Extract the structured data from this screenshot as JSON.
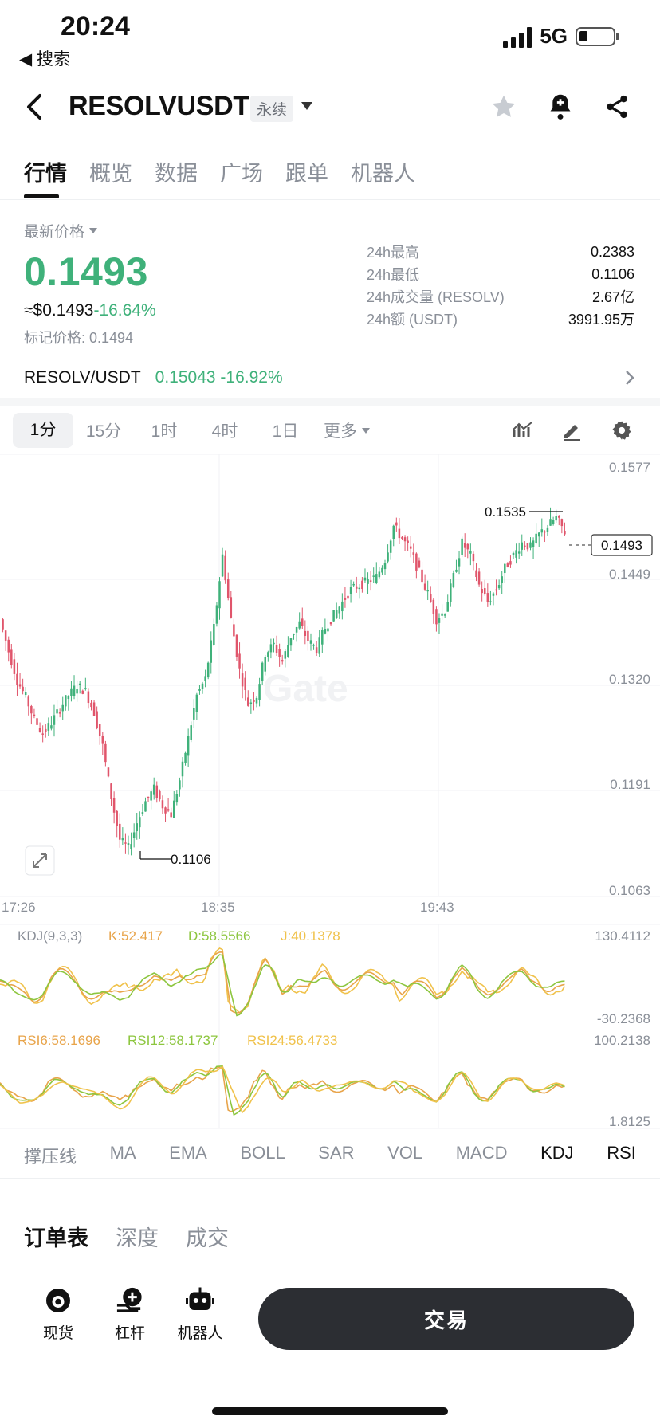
{
  "status": {
    "time": "20:24",
    "back_label": "◀ 搜索",
    "network": "5G"
  },
  "header": {
    "symbol": "RESOLVUSDT",
    "badge": "永续"
  },
  "tabs": [
    {
      "label": "行情",
      "active": true
    },
    {
      "label": "概览"
    },
    {
      "label": "数据"
    },
    {
      "label": "广场"
    },
    {
      "label": "跟单"
    },
    {
      "label": "机器人"
    }
  ],
  "price": {
    "label": "最新价格",
    "last": "0.1493",
    "usd": "≈$0.1493",
    "change": "-16.64%",
    "mark": "标记价格: 0.1494"
  },
  "stats": [
    {
      "k": "24h最高",
      "v": "0.2383"
    },
    {
      "k": "24h最低",
      "v": "0.1106"
    },
    {
      "k": "24h成交量 (RESOLV)",
      "v": "2.67亿"
    },
    {
      "k": "24h额 (USDT)",
      "v": "3991.95万"
    }
  ],
  "spot": {
    "pair": "RESOLV/USDT",
    "value": "0.15043 -16.92%"
  },
  "intervals": {
    "items": [
      "1分",
      "15分",
      "1时",
      "4时",
      "1日"
    ],
    "more": "更多"
  },
  "chart_data": {
    "type": "candlestick",
    "price_axis": [
      "0.1577",
      "0.1449",
      "0.1320",
      "0.1191",
      "0.1063"
    ],
    "ylim": [
      0.1063,
      0.1577
    ],
    "time_axis": [
      "17:26",
      "18:35",
      "19:43"
    ],
    "high_marker": "0.1535",
    "low_marker": "0.1106",
    "last_marker": "0.1493",
    "close_series_approx": [
      0.139,
      0.1352,
      0.1318,
      0.1298,
      0.1272,
      0.1255,
      0.1268,
      0.1285,
      0.13,
      0.1312,
      0.1305,
      0.128,
      0.124,
      0.118,
      0.113,
      0.112,
      0.115,
      0.1175,
      0.119,
      0.117,
      0.116,
      0.12,
      0.125,
      0.13,
      0.132,
      0.138,
      0.1465,
      0.139,
      0.133,
      0.129,
      0.13,
      0.135,
      0.136,
      0.134,
      0.137,
      0.1385,
      0.1365,
      0.1355,
      0.138,
      0.1395,
      0.141,
      0.1425,
      0.143,
      0.1435,
      0.144,
      0.146,
      0.15,
      0.1485,
      0.147,
      0.1445,
      0.142,
      0.139,
      0.14,
      0.144,
      0.148,
      0.1465,
      0.143,
      0.141,
      0.1425,
      0.145,
      0.1465,
      0.148,
      0.1475,
      0.149,
      0.15,
      0.151,
      0.1493
    ]
  },
  "kdj": {
    "label": "KDJ(9,3,3)",
    "k": "K:52.417",
    "d": "D:58.5566",
    "j": "J:40.1378",
    "top": "130.4112",
    "bottom": "-30.2368"
  },
  "rsi": {
    "r6": "RSI6:58.1696",
    "r12": "RSI12:58.1737",
    "r24": "RSI24:56.4733",
    "top": "100.2138",
    "bottom": "1.8125"
  },
  "indicator_tabs": [
    {
      "label": "撑压线"
    },
    {
      "label": "MA"
    },
    {
      "label": "EMA"
    },
    {
      "label": "BOLL"
    },
    {
      "label": "SAR"
    },
    {
      "label": "VOL"
    },
    {
      "label": "MACD"
    },
    {
      "label": "KDJ",
      "active": true
    },
    {
      "label": "RSI",
      "active": true
    }
  ],
  "book_tabs": [
    {
      "label": "订单表",
      "active": true
    },
    {
      "label": "深度"
    },
    {
      "label": "成交"
    }
  ],
  "bottom": {
    "spot": "现货",
    "margin": "杠杆",
    "bot": "机器人",
    "trade": "交易"
  },
  "colors": {
    "up": "#3fb17a",
    "down": "#e0556b",
    "k": "#e8a44a",
    "d": "#8dc63f",
    "j": "#f0c24b"
  }
}
